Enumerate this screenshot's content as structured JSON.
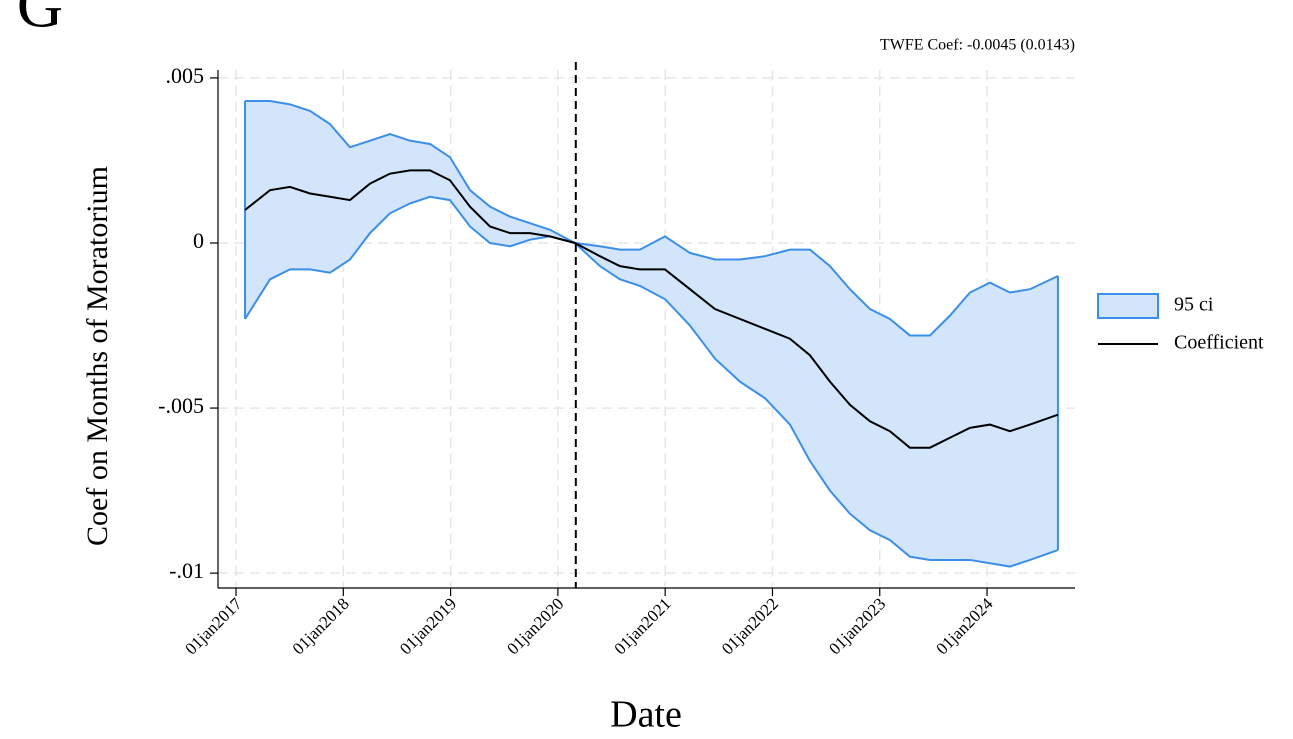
{
  "chart_data": {
    "type": "line",
    "panel_label": "G",
    "annotation": "TWFE Coef: -0.0045 (0.0143)",
    "x_label": "Date",
    "y_label": "Coef on Months of Moratorium",
    "x": [
      2017.084,
      2017.317,
      2017.503,
      2017.69,
      2017.876,
      2018.062,
      2018.249,
      2018.435,
      2018.622,
      2018.808,
      2018.994,
      2019.181,
      2019.367,
      2019.554,
      2019.74,
      2019.926,
      2020.159,
      2020.392,
      2020.579,
      2020.765,
      2020.998,
      2021.231,
      2021.464,
      2021.697,
      2021.93,
      2022.163,
      2022.349,
      2022.536,
      2022.722,
      2022.909,
      2023.095,
      2023.281,
      2023.468,
      2023.654,
      2023.841,
      2024.027,
      2024.213,
      2024.4,
      2024.661
    ],
    "series": [
      {
        "name": "95 ci",
        "color": "#3b8fe8",
        "fill": "#d2e5fb",
        "upper": [
          0.0043,
          0.0043,
          0.0042,
          0.004,
          0.0036,
          0.0029,
          0.0031,
          0.0033,
          0.0031,
          0.003,
          0.0026,
          0.0016,
          0.0011,
          0.0008,
          0.0006,
          0.0004,
          0,
          -0.0001,
          -0.0002,
          -0.0002,
          0.0002,
          -0.0003,
          -0.0005,
          -0.0005,
          -0.0004,
          -0.0002,
          -0.0002,
          -0.0007,
          -0.0014,
          -0.002,
          -0.0023,
          -0.0028,
          -0.0028,
          -0.0022,
          -0.0015,
          -0.0012,
          -0.0015,
          -0.0014,
          -0.001
        ],
        "lower": [
          -0.0023,
          -0.0011,
          -0.0008,
          -0.0008,
          -0.0009,
          -0.0005,
          0.0003,
          0.0009,
          0.0012,
          0.0014,
          0.0013,
          0.0005,
          0,
          -0.0001,
          0.0001,
          0.0002,
          0,
          -0.0007,
          -0.0011,
          -0.0013,
          -0.0017,
          -0.0025,
          -0.0035,
          -0.0042,
          -0.0047,
          -0.0055,
          -0.0066,
          -0.0075,
          -0.0082,
          -0.0087,
          -0.009,
          -0.0095,
          -0.0096,
          -0.0096,
          -0.0096,
          -0.0097,
          -0.0098,
          -0.0096,
          -0.0093
        ]
      },
      {
        "name": "Coefficient",
        "color": "#000000",
        "values": [
          0.001,
          0.0016,
          0.0017,
          0.0015,
          0.0014,
          0.0013,
          0.0018,
          0.0021,
          0.0022,
          0.0022,
          0.0019,
          0.0011,
          0.0005,
          0.0003,
          0.0003,
          0.0002,
          0,
          -0.0004,
          -0.0007,
          -0.0008,
          -0.0008,
          -0.0014,
          -0.002,
          -0.0023,
          -0.0026,
          -0.0029,
          -0.0034,
          -0.0042,
          -0.0049,
          -0.0054,
          -0.0057,
          -0.0062,
          -0.0062,
          -0.0059,
          -0.0056,
          -0.0055,
          -0.0057,
          -0.0055,
          -0.0052
        ]
      }
    ],
    "vline": 2020.167,
    "xlim": [
      2016.832,
      2024.82
    ],
    "ylim": [
      -0.01045,
      0.00524
    ],
    "xticks": [
      {
        "value": 2017,
        "label": "01jan2017"
      },
      {
        "value": 2018,
        "label": "01jan2018"
      },
      {
        "value": 2019,
        "label": "01jan2019"
      },
      {
        "value": 2020,
        "label": "01jan2020"
      },
      {
        "value": 2021,
        "label": "01jan2021"
      },
      {
        "value": 2022,
        "label": "01jan2022"
      },
      {
        "value": 2023,
        "label": "01jan2023"
      },
      {
        "value": 2024,
        "label": "01jan2024"
      }
    ],
    "yticks": [
      {
        "value": 0.005,
        "label": ".005"
      },
      0,
      {
        "value": -0.005,
        "label": "-.005"
      },
      {
        "value": -0.01,
        "label": "-.01"
      }
    ],
    "grid": true,
    "legend": "right"
  }
}
